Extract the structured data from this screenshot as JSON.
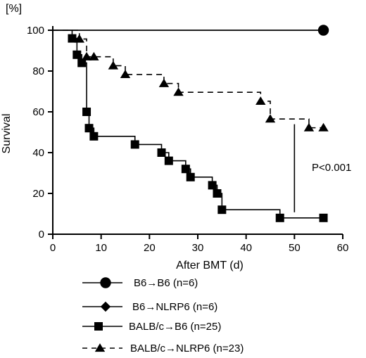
{
  "chart_data": {
    "type": "line",
    "subtype": "kaplan-meier-survival",
    "unit_label": "[%]",
    "xlabel": "After BMT (d)",
    "ylabel": "Survival",
    "xlim": [
      0,
      60
    ],
    "ylim": [
      0,
      100
    ],
    "xticks": [
      0,
      10,
      20,
      30,
      40,
      50,
      60
    ],
    "yticks": [
      0,
      20,
      40,
      60,
      80,
      100
    ],
    "grid": false,
    "legend_position": "bottom",
    "annotation": {
      "text": "P<0.001",
      "bracket_x": 50,
      "bracket_y": [
        8,
        56
      ]
    },
    "series": [
      {
        "name": "B6→B6 (n=6)",
        "marker": "circle",
        "line": "solid",
        "steps": [
          [
            0,
            100
          ],
          [
            56,
            100
          ]
        ],
        "markers": [
          [
            56,
            100
          ]
        ]
      },
      {
        "name": "B6→NLRP6  (n=6)",
        "marker": "diamond",
        "line": "solid",
        "steps": [
          [
            0,
            100
          ],
          [
            56,
            100
          ]
        ],
        "markers": []
      },
      {
        "name": "BALB/c→B6 (n=25)",
        "marker": "square",
        "line": "solid",
        "steps": [
          [
            0,
            100
          ],
          [
            4,
            96
          ],
          [
            5,
            88
          ],
          [
            6,
            84
          ],
          [
            7,
            60
          ],
          [
            7.5,
            52
          ],
          [
            8.5,
            48
          ],
          [
            17,
            44
          ],
          [
            22.5,
            40
          ],
          [
            24,
            36
          ],
          [
            27.5,
            32
          ],
          [
            28.5,
            28
          ],
          [
            33,
            24
          ],
          [
            34,
            20
          ],
          [
            35,
            12
          ],
          [
            47,
            8
          ],
          [
            56,
            8
          ]
        ],
        "markers": [
          [
            4,
            96
          ],
          [
            5,
            88
          ],
          [
            6,
            84
          ],
          [
            7,
            60
          ],
          [
            7.5,
            52
          ],
          [
            8.5,
            48
          ],
          [
            17,
            44
          ],
          [
            22.5,
            40
          ],
          [
            24,
            36
          ],
          [
            27.5,
            32
          ],
          [
            28.5,
            28
          ],
          [
            33,
            24
          ],
          [
            34,
            20
          ],
          [
            35,
            12
          ],
          [
            47,
            8
          ],
          [
            56,
            8
          ]
        ]
      },
      {
        "name": "BALB/c→NLRP6  (n=23)",
        "marker": "triangle",
        "line": "dashed",
        "steps": [
          [
            0,
            100
          ],
          [
            5.5,
            95.7
          ],
          [
            7,
            87
          ],
          [
            8.5,
            87
          ],
          [
            12.5,
            82.6
          ],
          [
            15,
            78.3
          ],
          [
            23,
            73.9
          ],
          [
            26,
            69.6
          ],
          [
            43,
            65.2
          ],
          [
            45,
            56.5
          ],
          [
            53,
            52.2
          ],
          [
            56,
            52.2
          ]
        ],
        "markers": [
          [
            5.5,
            95.7
          ],
          [
            7,
            87
          ],
          [
            8.5,
            87
          ],
          [
            12.5,
            82.6
          ],
          [
            15,
            78.3
          ],
          [
            23,
            73.9
          ],
          [
            26,
            69.6
          ],
          [
            43,
            65.2
          ],
          [
            45,
            56.5
          ],
          [
            53,
            52.2
          ],
          [
            56,
            52.2
          ]
        ]
      }
    ]
  }
}
